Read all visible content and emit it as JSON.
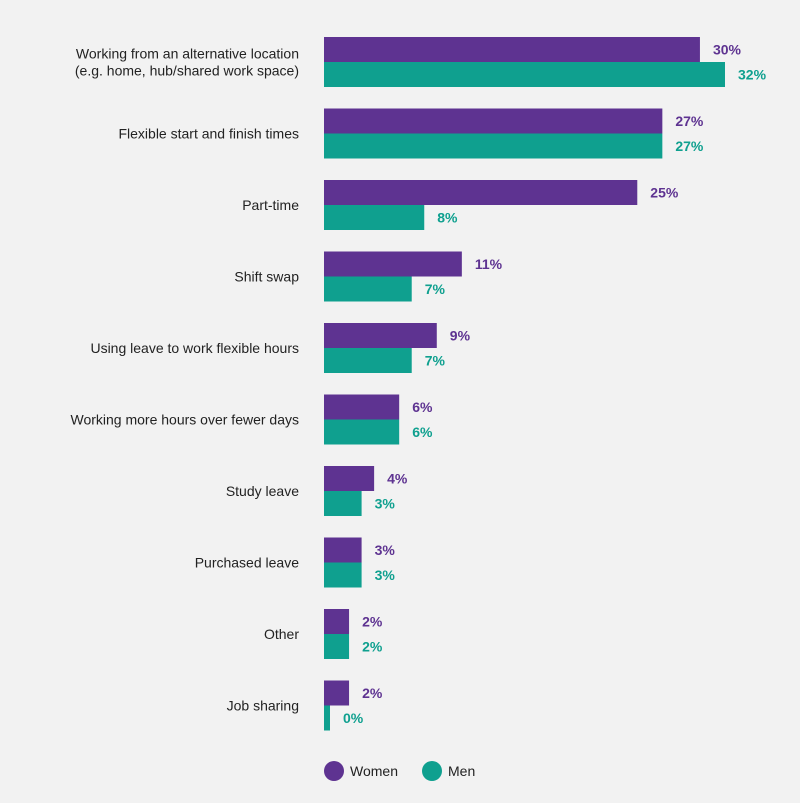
{
  "chart_data": {
    "type": "bar",
    "orientation": "horizontal",
    "categories": [
      [
        "Working from an alternative location",
        "(e.g. home, hub/shared work space)"
      ],
      [
        "Flexible start and finish times"
      ],
      [
        "Part-time"
      ],
      [
        "Shift swap"
      ],
      [
        "Using leave to work flexible hours"
      ],
      [
        "Working more hours over fewer days"
      ],
      [
        "Study leave"
      ],
      [
        "Purchased leave"
      ],
      [
        "Other"
      ],
      [
        "Job sharing"
      ]
    ],
    "series": [
      {
        "name": "Women",
        "color": "#5e3391",
        "values": [
          30,
          27,
          25,
          11,
          9,
          6,
          4,
          3,
          2,
          2
        ],
        "labels": [
          "30%",
          "27%",
          "25%",
          "11%",
          "9%",
          "6%",
          "4%",
          "3%",
          "2%",
          "2%"
        ]
      },
      {
        "name": "Men",
        "color": "#0fa08f",
        "values": [
          32,
          27,
          8,
          7,
          7,
          6,
          3,
          3,
          2,
          0
        ],
        "labels": [
          "32%",
          "27%",
          "8%",
          "7%",
          "7%",
          "6%",
          "3%",
          "3%",
          "2%",
          "0%"
        ]
      }
    ],
    "xlim": [
      0,
      32
    ],
    "grid": false,
    "legend_position": "bottom"
  }
}
